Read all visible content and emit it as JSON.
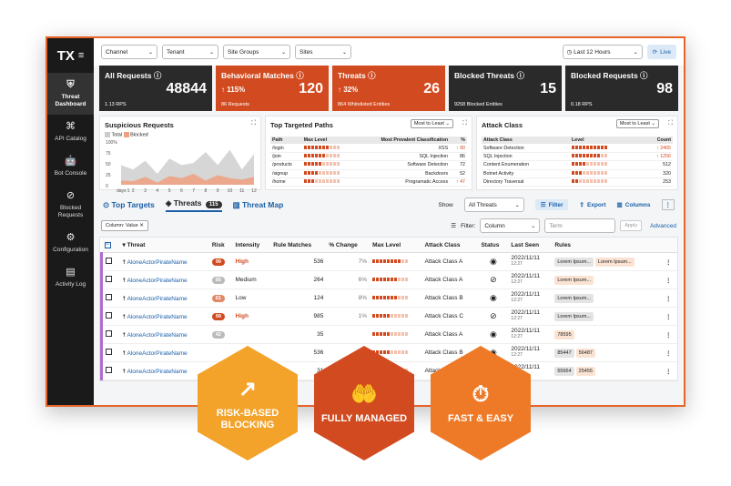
{
  "sidebar": {
    "logo": "TX",
    "items": [
      {
        "label": "Threat Dashboard",
        "icon": "shield-icon",
        "glyph": "⛨"
      },
      {
        "label": "API Catalog",
        "icon": "api-icon",
        "glyph": "⌘"
      },
      {
        "label": "Bot Console",
        "icon": "bot-icon",
        "glyph": "🤖"
      },
      {
        "label": "Blocked Requests",
        "icon": "blocked-icon",
        "glyph": "⊘"
      },
      {
        "label": "Configuration",
        "icon": "gear-icon",
        "glyph": "⚙"
      },
      {
        "label": "Activity Log",
        "icon": "calendar-icon",
        "glyph": "▤"
      }
    ]
  },
  "topbar": {
    "filters": [
      "Channel",
      "Tenant",
      "Site Groups",
      "Sites"
    ],
    "time": "Last 12 Hours",
    "live": "Live"
  },
  "cards": [
    {
      "title": "All Requests ⓘ",
      "value": "48844",
      "pct": "",
      "sub": "1.13 RPS",
      "style": "dark"
    },
    {
      "title": "Behavioral Matches ⓘ",
      "value": "120",
      "pct": "↑ 115%",
      "sub": "86 Requests",
      "style": "orange"
    },
    {
      "title": "Threats ⓘ",
      "value": "26",
      "pct": "↑ 32%",
      "sub": "864 Whitelisted Entities",
      "style": "orange"
    },
    {
      "title": "Blocked Threats ⓘ",
      "value": "15",
      "pct": "",
      "sub": "9258 Blocked Entities",
      "style": "dark"
    },
    {
      "title": "Blocked Requests ⓘ",
      "value": "98",
      "pct": "",
      "sub": "0.18 RPS",
      "style": "dark"
    }
  ],
  "suspicious": {
    "title": "Suspicious Requests",
    "legend": [
      "Total",
      "Blocked"
    ]
  },
  "chart_data": {
    "type": "area",
    "x": [
      1,
      2,
      3,
      4,
      5,
      6,
      7,
      8,
      9,
      10,
      11,
      12
    ],
    "xlabel": "days",
    "ylim": [
      0,
      100
    ],
    "yticks": [
      "100%",
      "75",
      "50",
      "25",
      "0"
    ],
    "series": [
      {
        "name": "Total",
        "values": [
          45,
          35,
          55,
          25,
          60,
          45,
          50,
          75,
          45,
          80,
          35,
          70
        ]
      },
      {
        "name": "Blocked",
        "values": [
          10,
          8,
          18,
          5,
          20,
          15,
          25,
          10,
          22,
          15,
          12,
          18
        ]
      }
    ]
  },
  "paths": {
    "title": "Top Targeted Paths",
    "sort": "Most to Least",
    "headers": [
      "Path",
      "Max Level",
      "Most Prevalent Classification",
      "%"
    ],
    "rows": [
      [
        "/login",
        "XSS",
        "↑ 90"
      ],
      [
        "/join",
        "SQL Injection",
        "86"
      ],
      [
        "/products",
        "Software Detection",
        "72"
      ],
      [
        "/signup",
        "Backdoors",
        "52"
      ],
      [
        "/home",
        "Programatic Access",
        "↑ 47"
      ]
    ]
  },
  "attack": {
    "title": "Attack Class",
    "sort": "Most to Least",
    "headers": [
      "Attack Class",
      "Level",
      "Count"
    ],
    "rows": [
      [
        "Software Detection",
        "↑ 2465"
      ],
      [
        "SQL Injection",
        "↑ 1256"
      ],
      [
        "Content Enumeration",
        "512"
      ],
      [
        "Botnet Activity",
        "320"
      ],
      [
        "Directory Traversal",
        "253"
      ]
    ]
  },
  "tabs": {
    "targets": "Top Targets",
    "threats": "Threats",
    "count": "115",
    "map": "Threat Map",
    "show": "Show",
    "show_val": "All Threats",
    "filter": "Filter",
    "export": "Export",
    "columns": "Columns"
  },
  "filterbar": {
    "chip": "Column: Value  ✕",
    "label": "Filter:",
    "column": "Column",
    "term": "Term",
    "apply": "Apply",
    "advanced": "Advanced"
  },
  "table": {
    "headers": [
      "Threat",
      "Risk",
      "Intensity",
      "Rule Matches",
      "% Change",
      "Max Level",
      "Attack Class",
      "Status",
      "Last Seen",
      "Rules"
    ],
    "rows": [
      {
        "name": "AloneActorPirateName",
        "risk": "99",
        "rc": "hi",
        "int": "High",
        "rm": "536",
        "pc": "7%",
        "ac": "Attack Class A",
        "st": "◉",
        "d": "2022/11/11",
        "t": "12:27",
        "rules": [
          "Lorem Ipsum...",
          "Lorem Ipsum..."
        ],
        "rt": [
          "g",
          "o"
        ]
      },
      {
        "name": "AloneActorPirateName",
        "risk": "65",
        "rc": "gy",
        "int": "Medium",
        "rm": "264",
        "pc": "6%",
        "ac": "Attack Class A",
        "st": "⊘",
        "d": "2022/11/11",
        "t": "12:27",
        "rules": [
          "Lorem Ipsum..."
        ],
        "rt": [
          "o"
        ]
      },
      {
        "name": "AloneActorPirateName",
        "risk": "61",
        "rc": "md",
        "int": "Low",
        "rm": "124",
        "pc": "8%",
        "ac": "Attack Class B",
        "st": "◉",
        "d": "2022/11/11",
        "t": "12:27",
        "rules": [
          "Lorem Ipsum..."
        ],
        "rt": [
          "g"
        ]
      },
      {
        "name": "AloneActorPirateName",
        "risk": "99",
        "rc": "hi",
        "int": "High",
        "rm": "985",
        "pc": "1%",
        "ac": "Attack Class C",
        "st": "⊘",
        "d": "2022/11/11",
        "t": "12:27",
        "rules": [
          "Lorem Ipsum..."
        ],
        "rt": [
          "g"
        ]
      },
      {
        "name": "AloneActorPirateName",
        "risk": "42",
        "rc": "gy",
        "int": "",
        "rm": "35",
        "pc": "",
        "ac": "Attack Class A",
        "st": "◉",
        "d": "2022/11/11",
        "t": "12:27",
        "rules": [
          "78595"
        ],
        "rt": [
          "o"
        ]
      },
      {
        "name": "AloneActorPirateName",
        "risk": "",
        "rc": "",
        "int": "",
        "rm": "536",
        "pc": "",
        "ac": "Attack Class B",
        "st": "◉",
        "d": "2022/11/11",
        "t": "12:27",
        "rules": [
          "85447",
          "56487"
        ],
        "rt": [
          "g",
          "o"
        ]
      },
      {
        "name": "AloneActorPirateName",
        "risk": "",
        "rc": "",
        "int": "",
        "rm": "31",
        "pc": "",
        "ac": "Attack Class A",
        "st": "◉",
        "d": "2022/11/11",
        "t": "12:27",
        "rules": [
          "65664",
          "25455"
        ],
        "rt": [
          "g",
          "o"
        ]
      }
    ]
  },
  "badges": [
    {
      "label": "RISK-BASED BLOCKING",
      "icon": "chart-up-icon",
      "glyph": "↗",
      "color": "#f3a32a"
    },
    {
      "label": "FULLY MANAGED",
      "icon": "hands-icon",
      "glyph": "🤲",
      "color": "#d24b20"
    },
    {
      "label": "FAST & EASY",
      "icon": "stopwatch-icon",
      "glyph": "⏱",
      "color": "#ee7a27"
    }
  ]
}
